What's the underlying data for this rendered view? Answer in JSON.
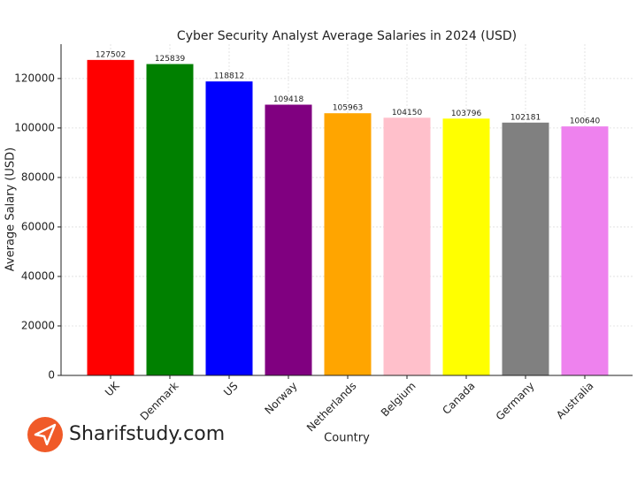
{
  "chart_data": {
    "type": "bar",
    "title": "Cyber Security Analyst Average Salaries in 2024 (USD)",
    "x_label": "Country",
    "y_label": "Average Salary (USD)",
    "categories": [
      "UK",
      "Denmark",
      "US",
      "Norway",
      "Netherlands",
      "Belgium",
      "Canada",
      "Germany",
      "Australia"
    ],
    "values": [
      127502,
      125839,
      118812,
      109418,
      105963,
      104150,
      103796,
      102181,
      100640
    ],
    "colors": [
      "#ff0000",
      "#008000",
      "#0000ff",
      "#800080",
      "#ffa500",
      "#ffc0cb",
      "#ffff00",
      "#808080",
      "#ee82ee"
    ],
    "ylim": [
      0,
      133877
    ],
    "yticks": [
      0,
      20000,
      40000,
      60000,
      80000,
      100000,
      120000
    ],
    "grid": true
  },
  "watermark": "Sharifstudy.com"
}
